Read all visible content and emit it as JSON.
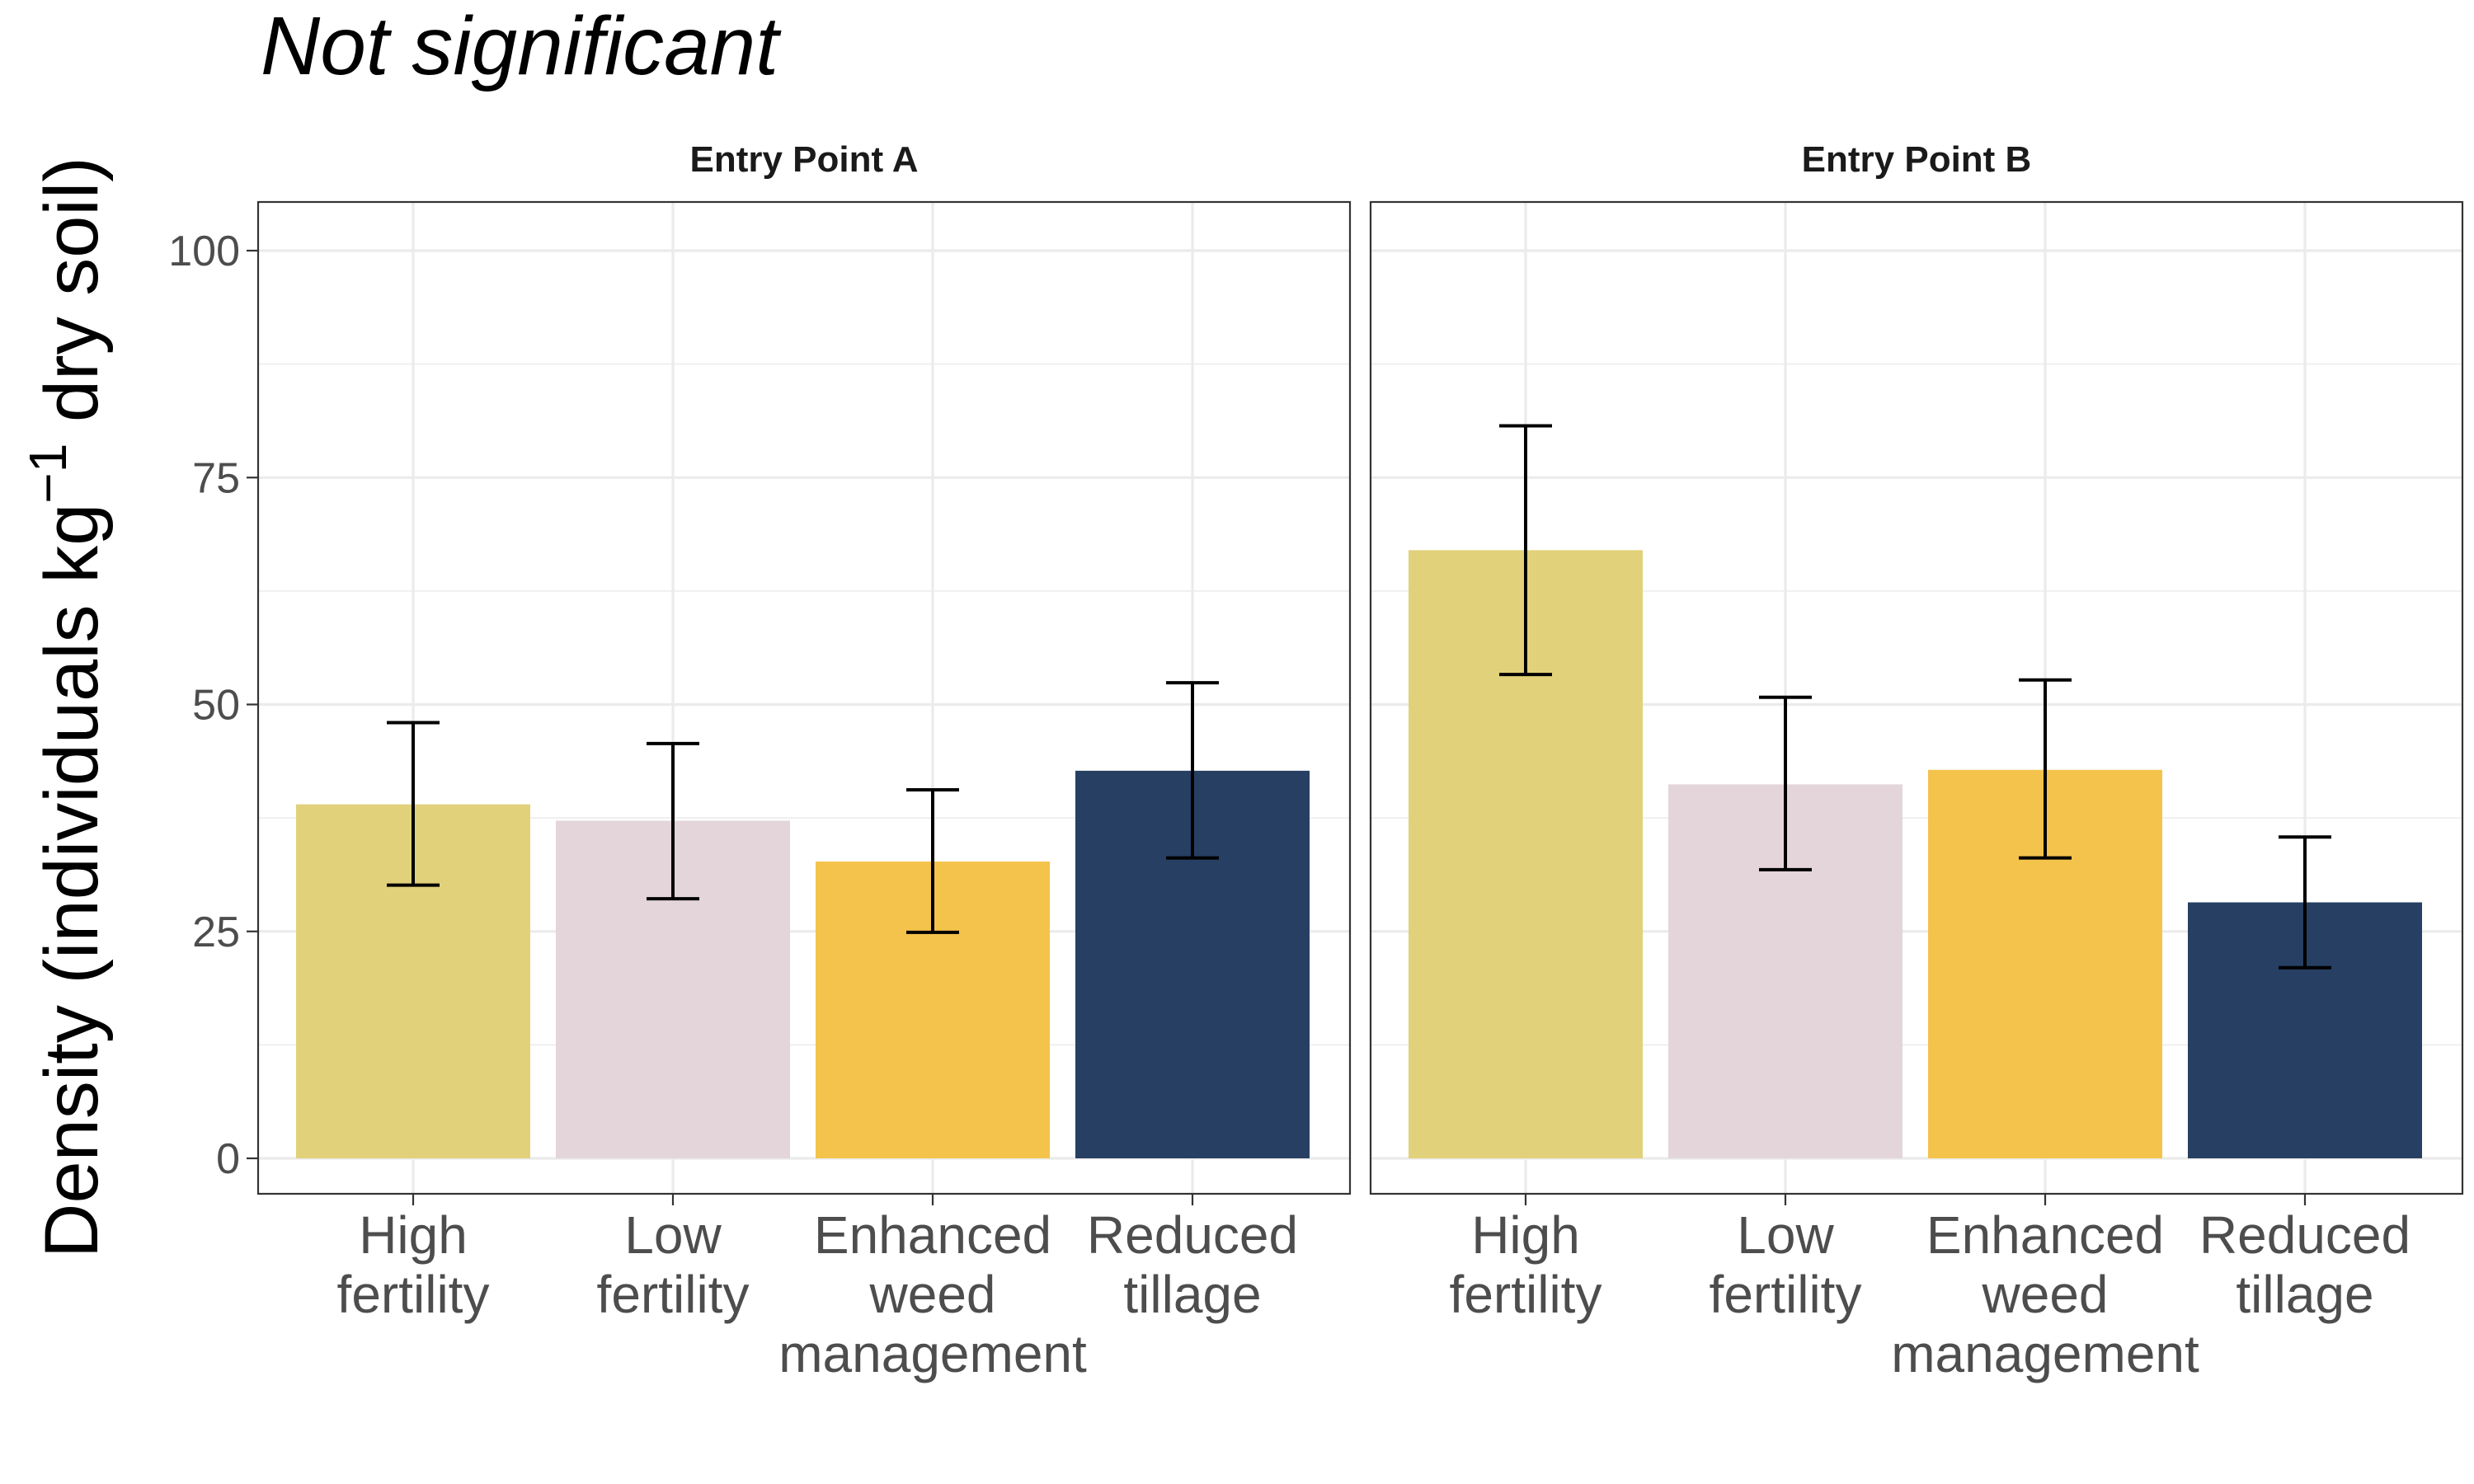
{
  "chart_data": {
    "type": "bar",
    "title": "Not significant",
    "ylabel": {
      "prefix": "Density ",
      "paren_open": "(",
      "main": "individuals kg",
      "superscript": "−1",
      "suffix": " dry soil",
      "paren_close": ")"
    },
    "ylim": [
      0,
      100
    ],
    "yticks": [
      0,
      25,
      50,
      75,
      100
    ],
    "ytick_labels": [
      "0",
      "25",
      "50",
      "75",
      "100"
    ],
    "categories": [
      [
        "High",
        "fertility"
      ],
      [
        "Low",
        "fertility"
      ],
      [
        "Enhanced",
        "weed",
        "management"
      ],
      [
        "Reduced",
        "tillage"
      ]
    ],
    "colors": [
      "#E1D17A",
      "#E3D5DA",
      "#F4C34C",
      "#263F63"
    ],
    "grid": true,
    "legend": "none",
    "panels": [
      {
        "title": "Entry Point A",
        "values": [
          39,
          37.2,
          32.7,
          42.7
        ],
        "error_low": [
          30.1,
          28.6,
          24.9,
          33.1
        ],
        "error_high": [
          48.0,
          45.7,
          40.6,
          52.4
        ]
      },
      {
        "title": "Entry Point B",
        "values": [
          67,
          41.2,
          42.8,
          28.2
        ],
        "error_low": [
          53.3,
          31.8,
          33.1,
          21.0
        ],
        "error_high": [
          80.7,
          50.8,
          52.7,
          35.4
        ]
      }
    ]
  }
}
